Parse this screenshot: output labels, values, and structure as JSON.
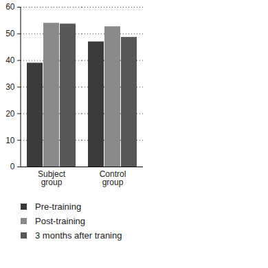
{
  "chart_data": {
    "type": "bar",
    "categories": [
      "Subject group",
      "Control group",
      null,
      null
    ],
    "series": [
      {
        "name": "Pre-training",
        "color": "#3a3a3a",
        "values": [
          39,
          47,
          null,
          null
        ]
      },
      {
        "name": "Post-training",
        "color": "#8a8a8a",
        "values": [
          54,
          52.7,
          null,
          null
        ]
      },
      {
        "name": "3 months after traning",
        "color": "#575757",
        "values": [
          53.7,
          48.7,
          null,
          null
        ]
      }
    ],
    "ylim": [
      0,
      60
    ],
    "yticks": [
      0,
      10,
      20,
      30,
      40,
      50,
      60
    ],
    "grid": true,
    "legend": "bottom"
  }
}
